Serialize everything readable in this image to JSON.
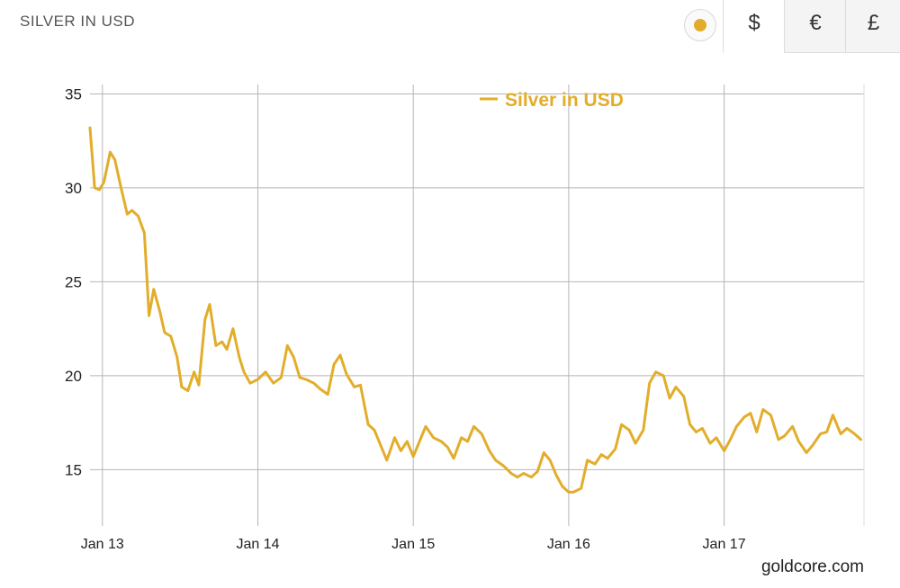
{
  "header": {
    "title": "SILVER IN USD",
    "currencies": [
      {
        "symbol": "$",
        "active": true
      },
      {
        "symbol": "€",
        "active": false
      },
      {
        "symbol": "£",
        "active": false
      }
    ]
  },
  "colors": {
    "series": "#e2ad2a",
    "grid": "#b5b5b5",
    "axis_text": "#222222"
  },
  "chart_data": {
    "type": "line",
    "title": "",
    "xlabel": "",
    "ylabel": "",
    "legend": "top-center",
    "grid": true,
    "xlim": [
      2012.92,
      2017.9
    ],
    "ylim": [
      12,
      35.5
    ],
    "x_ticks": [
      {
        "value": 2013.0,
        "label": "Jan 13"
      },
      {
        "value": 2014.0,
        "label": "Jan 14"
      },
      {
        "value": 2015.0,
        "label": "Jan 15"
      },
      {
        "value": 2016.0,
        "label": "Jan 16"
      },
      {
        "value": 2017.0,
        "label": "Jan 17"
      }
    ],
    "y_ticks": [
      15,
      20,
      25,
      30,
      35
    ],
    "series": [
      {
        "name": "Silver in USD",
        "x": [
          2012.92,
          2012.95,
          2012.98,
          2013.01,
          2013.05,
          2013.08,
          2013.12,
          2013.16,
          2013.19,
          2013.23,
          2013.27,
          2013.3,
          2013.33,
          2013.37,
          2013.4,
          2013.44,
          2013.48,
          2013.51,
          2013.55,
          2013.59,
          2013.62,
          2013.66,
          2013.69,
          2013.73,
          2013.77,
          2013.8,
          2013.84,
          2013.88,
          2013.91,
          2013.95,
          2014.0,
          2014.05,
          2014.1,
          2014.15,
          2014.19,
          2014.23,
          2014.27,
          2014.31,
          2014.36,
          2014.4,
          2014.45,
          2014.49,
          2014.53,
          2014.57,
          2014.62,
          2014.66,
          2014.71,
          2014.75,
          2014.79,
          2014.83,
          2014.88,
          2014.92,
          2014.96,
          2015.0,
          2015.04,
          2015.08,
          2015.13,
          2015.18,
          2015.22,
          2015.26,
          2015.31,
          2015.35,
          2015.39,
          2015.44,
          2015.49,
          2015.53,
          2015.58,
          2015.63,
          2015.67,
          2015.71,
          2015.76,
          2015.8,
          2015.84,
          2015.88,
          2015.92,
          2015.96,
          2016.0,
          2016.03,
          2016.08,
          2016.12,
          2016.17,
          2016.21,
          2016.25,
          2016.3,
          2016.34,
          2016.39,
          2016.43,
          2016.48,
          2016.52,
          2016.56,
          2016.61,
          2016.65,
          2016.69,
          2016.74,
          2016.78,
          2016.82,
          2016.86,
          2016.91,
          2016.95,
          2017.0,
          2017.04,
          2017.08,
          2017.13,
          2017.17,
          2017.21,
          2017.25,
          2017.3,
          2017.35,
          2017.39,
          2017.44,
          2017.48,
          2017.53,
          2017.57,
          2017.62,
          2017.66,
          2017.7,
          2017.75,
          2017.79,
          2017.84,
          2017.88
        ],
        "y": [
          33.2,
          30.0,
          29.9,
          30.3,
          31.9,
          31.5,
          30.0,
          28.6,
          28.8,
          28.5,
          27.6,
          23.2,
          24.6,
          23.4,
          22.3,
          22.1,
          21.0,
          19.4,
          19.2,
          20.2,
          19.5,
          23.0,
          23.8,
          21.6,
          21.8,
          21.4,
          22.5,
          21.0,
          20.2,
          19.6,
          19.8,
          20.2,
          19.6,
          19.9,
          21.6,
          21.0,
          19.9,
          19.8,
          19.6,
          19.3,
          19.0,
          20.6,
          21.1,
          20.1,
          19.4,
          19.5,
          17.4,
          17.1,
          16.3,
          15.5,
          16.7,
          16.0,
          16.5,
          15.7,
          16.5,
          17.3,
          16.7,
          16.5,
          16.2,
          15.6,
          16.7,
          16.5,
          17.3,
          16.9,
          16.0,
          15.5,
          15.2,
          14.8,
          14.6,
          14.8,
          14.6,
          14.9,
          15.9,
          15.5,
          14.7,
          14.1,
          13.8,
          13.8,
          14.0,
          15.5,
          15.3,
          15.8,
          15.6,
          16.1,
          17.4,
          17.1,
          16.4,
          17.1,
          19.6,
          20.2,
          20.0,
          18.8,
          19.4,
          18.9,
          17.4,
          17.0,
          17.2,
          16.4,
          16.7,
          16.0,
          16.6,
          17.3,
          17.8,
          18.0,
          17.0,
          18.2,
          17.9,
          16.6,
          16.8,
          17.3,
          16.5,
          15.9,
          16.3,
          16.9,
          17.0,
          17.9,
          16.9,
          17.2,
          16.9,
          16.6
        ]
      }
    ],
    "credit": "goldcore.com"
  }
}
